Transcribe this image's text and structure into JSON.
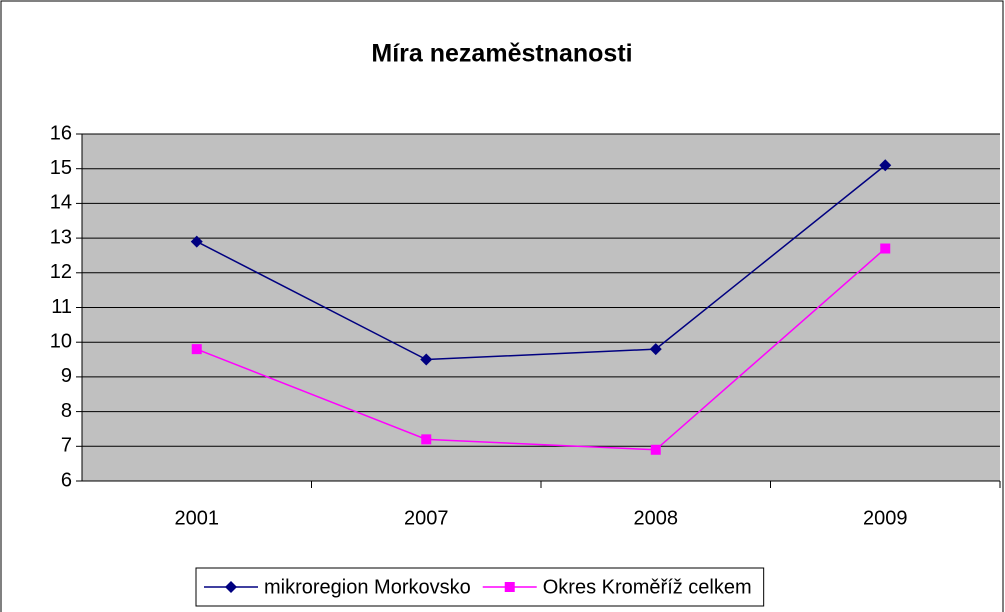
{
  "chart_data": {
    "type": "line",
    "title": "Míra nezaměstnanosti",
    "categories": [
      "2001",
      "2007",
      "2008",
      "2009"
    ],
    "series": [
      {
        "name": "mikroregion Morkovsko",
        "color": "#000080",
        "marker": "diamond",
        "values": [
          12.9,
          9.5,
          9.8,
          15.1
        ]
      },
      {
        "name": "Okres Kroměříž celkem",
        "color": "#ff00ff",
        "marker": "square",
        "values": [
          9.8,
          7.2,
          6.9,
          12.7
        ]
      }
    ],
    "ylim": [
      6,
      16
    ],
    "yticks": [
      6,
      7,
      8,
      9,
      10,
      11,
      12,
      13,
      14,
      15,
      16
    ],
    "grid": true,
    "legend": "bottom"
  }
}
